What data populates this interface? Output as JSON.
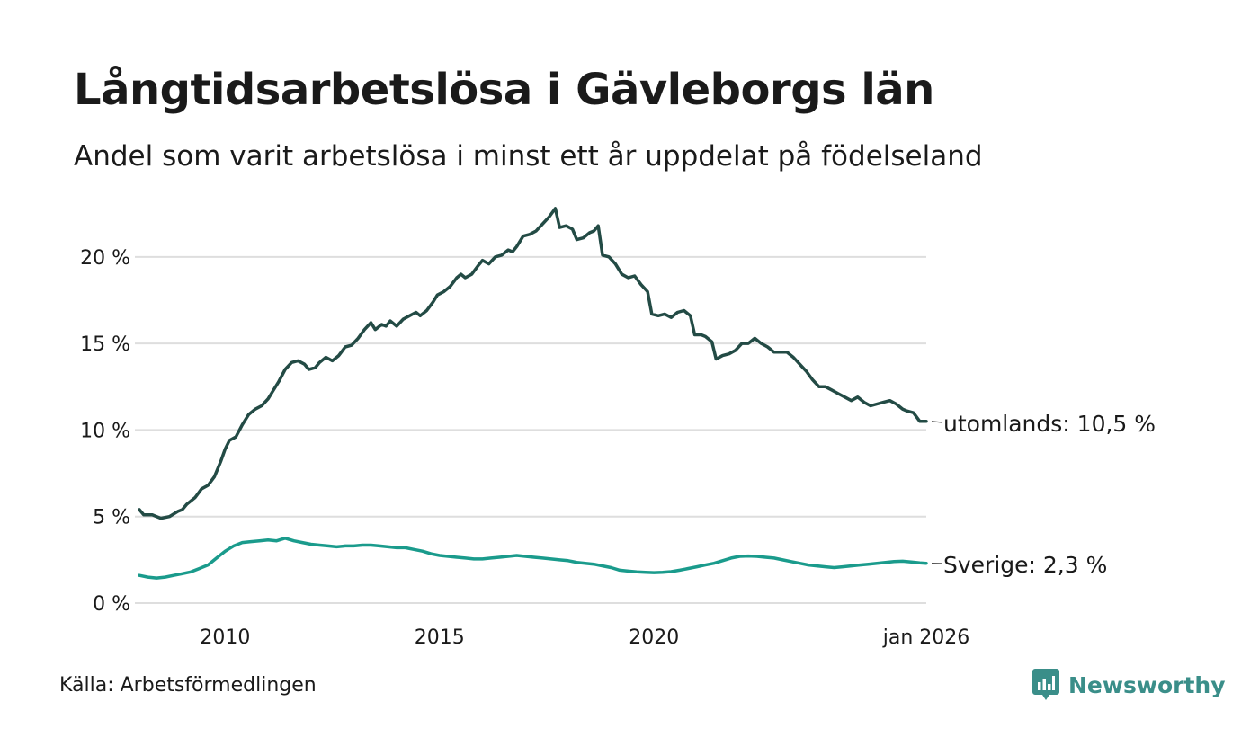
{
  "header": {
    "title": "Långtidsarbetslösa i Gävleborgs län",
    "subtitle": "Andel som varit arbetslösa i minst ett år uppdelat på födelseland"
  },
  "footer": {
    "source": "Källa: Arbetsförmedlingen",
    "brand": "Newsworthy"
  },
  "colors": {
    "utomlands": "#234b45",
    "sverige": "#1a9b8c",
    "grid": "#dedede",
    "brand": "#3a8e89"
  },
  "chart_data": {
    "type": "line",
    "title": "Långtidsarbetslösa i Gävleborgs län",
    "subtitle": "Andel som varit arbetslösa i minst ett år uppdelat på födelseland",
    "xlabel": "",
    "ylabel": "",
    "x_range": [
      2008.0,
      2026.0
    ],
    "ylim": [
      0,
      22.9
    ],
    "y_ticks": [
      0,
      5,
      10,
      15,
      20
    ],
    "y_tick_labels": [
      "0 %",
      "5 %",
      "10 %",
      "15 %",
      "20 %"
    ],
    "x_ticks": [
      2010,
      2015,
      2020,
      2026
    ],
    "x_tick_labels": [
      "2010",
      "2015",
      "2020",
      "jan 2026"
    ],
    "grid": true,
    "legend": "direct labels at line ends",
    "series": [
      {
        "name": "utomlands",
        "end_label": "utomlands: 10,5 %",
        "points": [
          [
            2008.0,
            5.4
          ],
          [
            2008.1,
            5.1
          ],
          [
            2008.3,
            5.1
          ],
          [
            2008.5,
            4.9
          ],
          [
            2008.7,
            5.0
          ],
          [
            2008.9,
            5.3
          ],
          [
            2009.0,
            5.4
          ],
          [
            2009.1,
            5.7
          ],
          [
            2009.3,
            6.1
          ],
          [
            2009.45,
            6.6
          ],
          [
            2009.6,
            6.8
          ],
          [
            2009.75,
            7.3
          ],
          [
            2009.9,
            8.2
          ],
          [
            2010.0,
            8.9
          ],
          [
            2010.1,
            9.4
          ],
          [
            2010.25,
            9.6
          ],
          [
            2010.4,
            10.3
          ],
          [
            2010.55,
            10.9
          ],
          [
            2010.7,
            11.2
          ],
          [
            2010.85,
            11.4
          ],
          [
            2011.0,
            11.8
          ],
          [
            2011.1,
            12.2
          ],
          [
            2011.25,
            12.8
          ],
          [
            2011.4,
            13.5
          ],
          [
            2011.55,
            13.9
          ],
          [
            2011.7,
            14.0
          ],
          [
            2011.85,
            13.8
          ],
          [
            2011.95,
            13.5
          ],
          [
            2012.1,
            13.6
          ],
          [
            2012.2,
            13.9
          ],
          [
            2012.35,
            14.2
          ],
          [
            2012.5,
            14.0
          ],
          [
            2012.65,
            14.3
          ],
          [
            2012.8,
            14.8
          ],
          [
            2012.95,
            14.9
          ],
          [
            2013.1,
            15.3
          ],
          [
            2013.25,
            15.8
          ],
          [
            2013.4,
            16.2
          ],
          [
            2013.5,
            15.8
          ],
          [
            2013.65,
            16.1
          ],
          [
            2013.75,
            16.0
          ],
          [
            2013.85,
            16.3
          ],
          [
            2014.0,
            16.0
          ],
          [
            2014.15,
            16.4
          ],
          [
            2014.3,
            16.6
          ],
          [
            2014.45,
            16.8
          ],
          [
            2014.55,
            16.6
          ],
          [
            2014.7,
            16.9
          ],
          [
            2014.85,
            17.4
          ],
          [
            2014.95,
            17.8
          ],
          [
            2015.1,
            18.0
          ],
          [
            2015.25,
            18.3
          ],
          [
            2015.4,
            18.8
          ],
          [
            2015.5,
            19.0
          ],
          [
            2015.6,
            18.8
          ],
          [
            2015.75,
            19.0
          ],
          [
            2015.9,
            19.5
          ],
          [
            2016.0,
            19.8
          ],
          [
            2016.15,
            19.6
          ],
          [
            2016.3,
            20.0
          ],
          [
            2016.45,
            20.1
          ],
          [
            2016.6,
            20.4
          ],
          [
            2016.7,
            20.3
          ],
          [
            2016.8,
            20.6
          ],
          [
            2016.95,
            21.2
          ],
          [
            2017.1,
            21.3
          ],
          [
            2017.25,
            21.5
          ],
          [
            2017.4,
            21.9
          ],
          [
            2017.55,
            22.3
          ],
          [
            2017.7,
            22.8
          ],
          [
            2017.8,
            21.7
          ],
          [
            2017.95,
            21.8
          ],
          [
            2018.1,
            21.6
          ],
          [
            2018.2,
            21.0
          ],
          [
            2018.35,
            21.1
          ],
          [
            2018.5,
            21.4
          ],
          [
            2018.6,
            21.5
          ],
          [
            2018.7,
            21.8
          ],
          [
            2018.8,
            20.1
          ],
          [
            2018.95,
            20.0
          ],
          [
            2019.1,
            19.6
          ],
          [
            2019.25,
            19.0
          ],
          [
            2019.4,
            18.8
          ],
          [
            2019.55,
            18.9
          ],
          [
            2019.7,
            18.4
          ],
          [
            2019.85,
            18.0
          ],
          [
            2019.95,
            16.7
          ],
          [
            2020.1,
            16.6
          ],
          [
            2020.25,
            16.7
          ],
          [
            2020.4,
            16.5
          ],
          [
            2020.55,
            16.8
          ],
          [
            2020.7,
            16.9
          ],
          [
            2020.85,
            16.6
          ],
          [
            2020.95,
            15.5
          ],
          [
            2021.1,
            15.5
          ],
          [
            2021.2,
            15.4
          ],
          [
            2021.35,
            15.1
          ],
          [
            2021.45,
            14.1
          ],
          [
            2021.6,
            14.3
          ],
          [
            2021.75,
            14.4
          ],
          [
            2021.9,
            14.6
          ],
          [
            2022.05,
            15.0
          ],
          [
            2022.2,
            15.0
          ],
          [
            2022.35,
            15.3
          ],
          [
            2022.5,
            15.0
          ],
          [
            2022.65,
            14.8
          ],
          [
            2022.8,
            14.5
          ],
          [
            2022.95,
            14.5
          ],
          [
            2023.1,
            14.5
          ],
          [
            2023.25,
            14.2
          ],
          [
            2023.4,
            13.8
          ],
          [
            2023.55,
            13.4
          ],
          [
            2023.7,
            12.9
          ],
          [
            2023.85,
            12.5
          ],
          [
            2024.0,
            12.5
          ],
          [
            2024.15,
            12.3
          ],
          [
            2024.3,
            12.1
          ],
          [
            2024.45,
            11.9
          ],
          [
            2024.6,
            11.7
          ],
          [
            2024.75,
            11.9
          ],
          [
            2024.9,
            11.6
          ],
          [
            2025.05,
            11.4
          ],
          [
            2025.2,
            11.5
          ],
          [
            2025.35,
            11.6
          ],
          [
            2025.5,
            11.7
          ],
          [
            2025.65,
            11.5
          ],
          [
            2025.8,
            11.2
          ],
          [
            2025.9,
            11.1
          ],
          [
            2026.05,
            11.0
          ],
          [
            2026.2,
            10.5
          ],
          [
            2026.35,
            10.5
          ]
        ]
      },
      {
        "name": "Sverige",
        "end_label": "Sverige:  2,3 %",
        "points": [
          [
            2008.0,
            1.6
          ],
          [
            2008.2,
            1.5
          ],
          [
            2008.4,
            1.45
          ],
          [
            2008.6,
            1.5
          ],
          [
            2008.8,
            1.6
          ],
          [
            2009.0,
            1.7
          ],
          [
            2009.2,
            1.8
          ],
          [
            2009.4,
            2.0
          ],
          [
            2009.6,
            2.2
          ],
          [
            2009.8,
            2.6
          ],
          [
            2010.0,
            3.0
          ],
          [
            2010.2,
            3.3
          ],
          [
            2010.4,
            3.5
          ],
          [
            2010.6,
            3.55
          ],
          [
            2010.8,
            3.6
          ],
          [
            2011.0,
            3.65
          ],
          [
            2011.2,
            3.6
          ],
          [
            2011.4,
            3.75
          ],
          [
            2011.6,
            3.6
          ],
          [
            2011.8,
            3.5
          ],
          [
            2012.0,
            3.4
          ],
          [
            2012.2,
            3.35
          ],
          [
            2012.4,
            3.3
          ],
          [
            2012.6,
            3.25
          ],
          [
            2012.8,
            3.3
          ],
          [
            2013.0,
            3.3
          ],
          [
            2013.2,
            3.35
          ],
          [
            2013.4,
            3.35
          ],
          [
            2013.6,
            3.3
          ],
          [
            2013.8,
            3.25
          ],
          [
            2014.0,
            3.2
          ],
          [
            2014.2,
            3.2
          ],
          [
            2014.4,
            3.1
          ],
          [
            2014.6,
            3.0
          ],
          [
            2014.8,
            2.85
          ],
          [
            2015.0,
            2.75
          ],
          [
            2015.2,
            2.7
          ],
          [
            2015.4,
            2.65
          ],
          [
            2015.6,
            2.6
          ],
          [
            2015.8,
            2.55
          ],
          [
            2016.0,
            2.55
          ],
          [
            2016.2,
            2.6
          ],
          [
            2016.4,
            2.65
          ],
          [
            2016.6,
            2.7
          ],
          [
            2016.8,
            2.75
          ],
          [
            2017.0,
            2.7
          ],
          [
            2017.2,
            2.65
          ],
          [
            2017.4,
            2.6
          ],
          [
            2017.6,
            2.55
          ],
          [
            2017.8,
            2.5
          ],
          [
            2018.0,
            2.45
          ],
          [
            2018.2,
            2.35
          ],
          [
            2018.4,
            2.3
          ],
          [
            2018.6,
            2.25
          ],
          [
            2018.8,
            2.15
          ],
          [
            2019.0,
            2.05
          ],
          [
            2019.2,
            1.9
          ],
          [
            2019.4,
            1.85
          ],
          [
            2019.6,
            1.8
          ],
          [
            2019.8,
            1.78
          ],
          [
            2020.0,
            1.76
          ],
          [
            2020.2,
            1.78
          ],
          [
            2020.4,
            1.82
          ],
          [
            2020.6,
            1.9
          ],
          [
            2020.8,
            2.0
          ],
          [
            2021.0,
            2.1
          ],
          [
            2021.2,
            2.2
          ],
          [
            2021.4,
            2.3
          ],
          [
            2021.6,
            2.45
          ],
          [
            2021.8,
            2.6
          ],
          [
            2022.0,
            2.7
          ],
          [
            2022.2,
            2.72
          ],
          [
            2022.4,
            2.7
          ],
          [
            2022.6,
            2.65
          ],
          [
            2022.8,
            2.6
          ],
          [
            2023.0,
            2.5
          ],
          [
            2023.2,
            2.4
          ],
          [
            2023.4,
            2.3
          ],
          [
            2023.6,
            2.2
          ],
          [
            2023.8,
            2.15
          ],
          [
            2024.0,
            2.1
          ],
          [
            2024.2,
            2.05
          ],
          [
            2024.4,
            2.1
          ],
          [
            2024.6,
            2.15
          ],
          [
            2024.8,
            2.2
          ],
          [
            2025.0,
            2.25
          ],
          [
            2025.2,
            2.3
          ],
          [
            2025.4,
            2.35
          ],
          [
            2025.6,
            2.4
          ],
          [
            2025.8,
            2.42
          ],
          [
            2026.0,
            2.38
          ],
          [
            2026.2,
            2.32
          ],
          [
            2026.35,
            2.3
          ]
        ]
      }
    ]
  }
}
